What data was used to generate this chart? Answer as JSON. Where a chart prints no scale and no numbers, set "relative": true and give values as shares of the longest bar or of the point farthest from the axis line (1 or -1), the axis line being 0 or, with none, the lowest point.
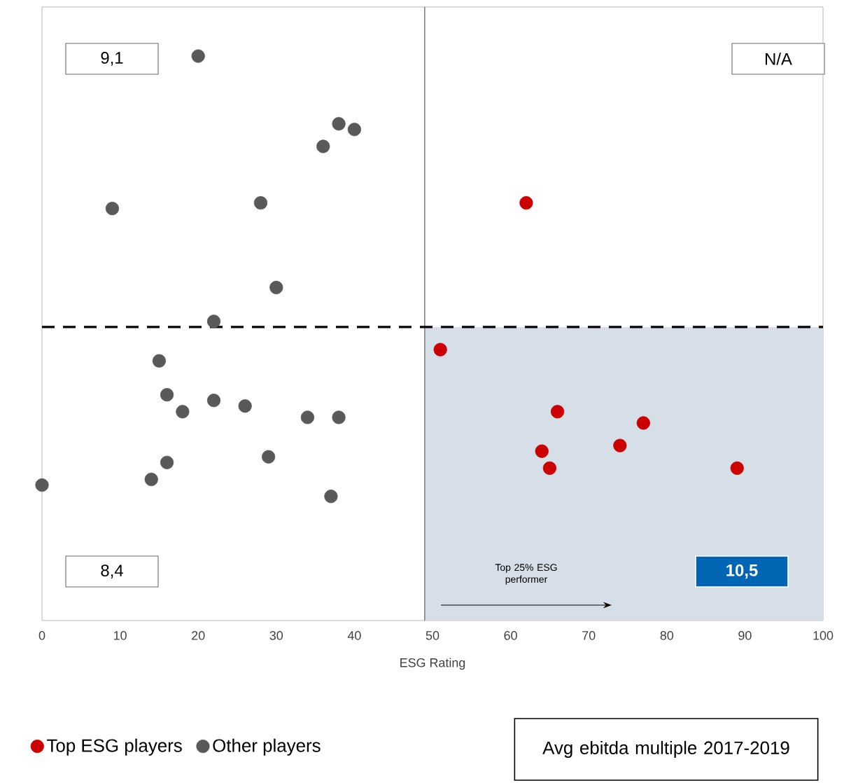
{
  "chart_data": {
    "type": "scatter",
    "relative": true,
    "xlabel": "ESG Rating",
    "xlim": [
      0,
      100
    ],
    "xticks": [
      0,
      10,
      20,
      30,
      40,
      50,
      60,
      70,
      80,
      90,
      100
    ],
    "tick_labels": "x",
    "grid": false,
    "legend": "bottom left",
    "marker": "circle",
    "series": [
      {
        "name": "Top ESG players",
        "color": "#cc0000",
        "x": [
          62,
          51,
          66,
          77,
          74,
          64,
          65,
          89
        ],
        "values": [
          0.74,
          0.48,
          0.37,
          0.35,
          0.31,
          0.3,
          0.27,
          0.27
        ]
      },
      {
        "name": "Other players",
        "color": "#595959",
        "x": [
          20,
          38,
          40,
          36,
          9,
          28,
          30,
          22,
          15,
          16,
          18,
          22,
          26,
          34,
          38,
          29,
          16,
          14,
          0,
          37
        ],
        "values": [
          1.0,
          0.88,
          0.87,
          0.84,
          0.73,
          0.74,
          0.59,
          0.53,
          0.46,
          0.4,
          0.37,
          0.39,
          0.38,
          0.36,
          0.36,
          0.29,
          0.28,
          0.25,
          0.24,
          0.22
        ]
      }
    ],
    "ref_lines": [
      {
        "axis": "x",
        "value": 49,
        "color": "#808080",
        "line_style": "solid"
      },
      {
        "axis": "y",
        "value": 0.52,
        "color": "#000000",
        "line_style": "dashed"
      }
    ],
    "bands": [
      {
        "axis": "x",
        "from": 49,
        "to": 100,
        "color": "#d6dfe8"
      }
    ],
    "annotations": [
      "9,1",
      "N/A",
      "8,4",
      "10,5",
      "Top 25% ESG performer",
      "Avg ebitda multiple 2017-2019"
    ]
  }
}
